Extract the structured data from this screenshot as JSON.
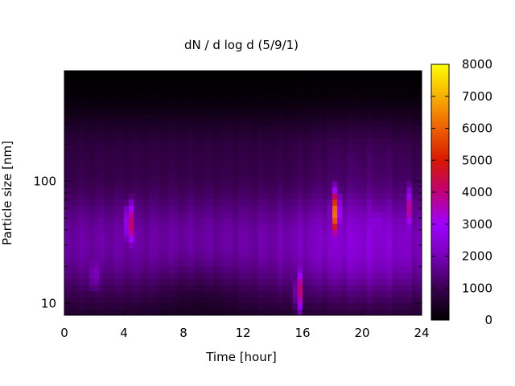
{
  "chart_data": {
    "type": "heatmap",
    "title": "dN / d log d (5/9/1)",
    "xlabel": "Time [hour]",
    "ylabel": "Particle size [nm]",
    "x_range": [
      0,
      24
    ],
    "x_ticks": [
      0,
      4,
      8,
      12,
      16,
      20,
      24
    ],
    "y_range_nm": [
      8,
      800
    ],
    "y_scale": "log",
    "y_ticks": [
      10,
      100
    ],
    "colorbar": {
      "range": [
        0,
        8000
      ],
      "ticks": [
        0,
        1000,
        2000,
        3000,
        4000,
        5000,
        6000,
        7000,
        8000
      ],
      "palette": "gnuplot (black-purple-red-orange-yellow)"
    },
    "hotspots": [
      {
        "time_h": 2.0,
        "size_nm": 18,
        "value": 2800
      },
      {
        "time_h": 4.4,
        "size_nm": 45,
        "value": 5000
      },
      {
        "time_h": 15.8,
        "size_nm": 13,
        "value": 4200
      },
      {
        "time_h": 18.2,
        "size_nm": 55,
        "value": 6800
      },
      {
        "time_h": 21.0,
        "size_nm": 45,
        "value": 3500
      },
      {
        "time_h": 23.2,
        "size_nm": 60,
        "value": 4000
      }
    ]
  }
}
